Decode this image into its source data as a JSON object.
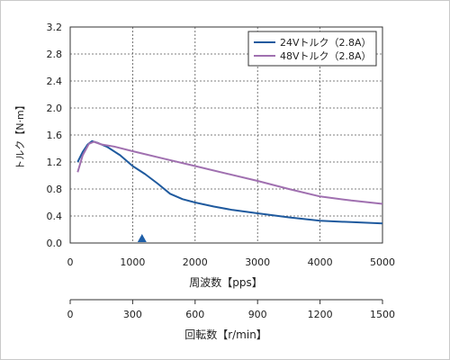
{
  "chart_data": {
    "type": "line",
    "xlabel": "周波数【pps】",
    "ylabel": "トルク【N·m】",
    "xlim": [
      0,
      5000
    ],
    "ylim": [
      0,
      3.2
    ],
    "x_ticks": [
      0,
      1000,
      2000,
      3000,
      4000,
      5000
    ],
    "y_ticks": [
      0.0,
      0.4,
      0.8,
      1.2,
      1.6,
      2.0,
      2.4,
      2.8,
      3.2
    ],
    "y_tick_labels": [
      "0.0",
      "0.4",
      "0.8",
      "1.2",
      "1.6",
      "2.0",
      "2.4",
      "2.8",
      "3.2"
    ],
    "grid": true,
    "legend_position": "top-right",
    "marker": {
      "x": 1150,
      "color": "#1f5fa8"
    },
    "series": [
      {
        "name": "24Vトルク（2.8A）",
        "color": "#1f5a9e",
        "points": [
          [
            120,
            1.2
          ],
          [
            200,
            1.35
          ],
          [
            280,
            1.46
          ],
          [
            350,
            1.51
          ],
          [
            450,
            1.48
          ],
          [
            600,
            1.42
          ],
          [
            800,
            1.3
          ],
          [
            1000,
            1.14
          ],
          [
            1200,
            1.02
          ],
          [
            1400,
            0.88
          ],
          [
            1600,
            0.73
          ],
          [
            1800,
            0.65
          ],
          [
            2000,
            0.6
          ],
          [
            2300,
            0.54
          ],
          [
            2600,
            0.49
          ],
          [
            3000,
            0.44
          ],
          [
            3500,
            0.38
          ],
          [
            4000,
            0.33
          ],
          [
            4500,
            0.31
          ],
          [
            5000,
            0.29
          ]
        ]
      },
      {
        "name": "48Vトルク（2.8A）",
        "color": "#a070b0",
        "points": [
          [
            120,
            1.05
          ],
          [
            200,
            1.3
          ],
          [
            300,
            1.47
          ],
          [
            380,
            1.5
          ],
          [
            500,
            1.46
          ],
          [
            700,
            1.43
          ],
          [
            1000,
            1.36
          ],
          [
            1500,
            1.25
          ],
          [
            2000,
            1.14
          ],
          [
            2500,
            1.03
          ],
          [
            3000,
            0.92
          ],
          [
            3500,
            0.8
          ],
          [
            4000,
            0.69
          ],
          [
            4500,
            0.63
          ],
          [
            5000,
            0.58
          ]
        ]
      }
    ],
    "secondary_axis": {
      "label": "回転数【r/min】",
      "lim": [
        0,
        1500
      ],
      "ticks": [
        0,
        300,
        600,
        900,
        1200,
        1500
      ]
    }
  }
}
